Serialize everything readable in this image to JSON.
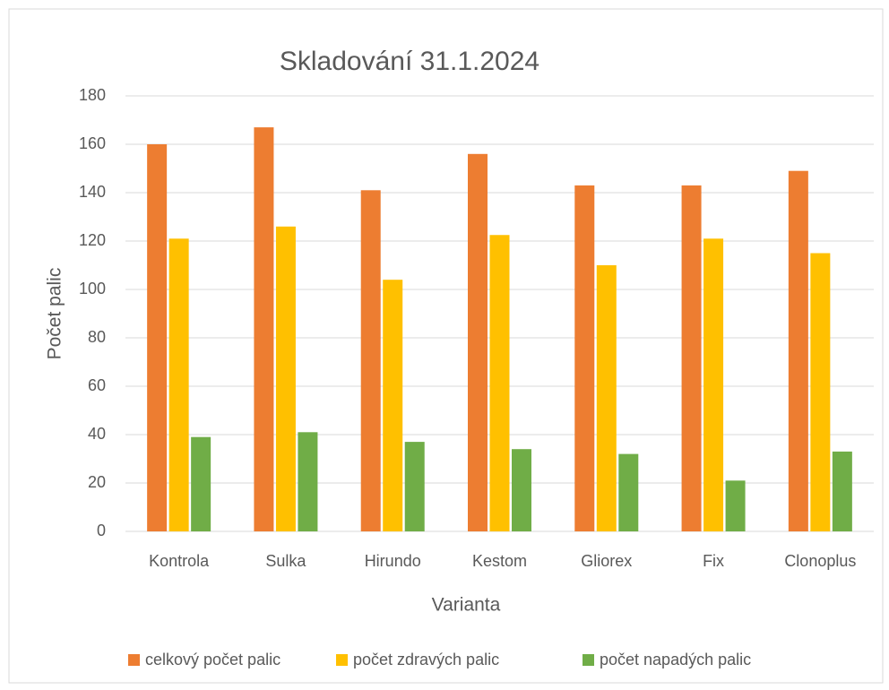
{
  "chart_data": {
    "type": "bar",
    "title": "Skladování 31.1.2024",
    "x_label": "Varianta",
    "y_label": "Počet palic",
    "categories": [
      "Kontrola",
      "Sulka",
      "Hirundo",
      "Kestom",
      "Gliorex",
      "Fix",
      "Clonoplus"
    ],
    "series": [
      {
        "name": "celkový počet palic",
        "color": "#ed7d31",
        "values": [
          160,
          167,
          141,
          156,
          143,
          143,
          149
        ]
      },
      {
        "name": "počet zdravých palic",
        "color": "#ffc000",
        "values": [
          121,
          126,
          104,
          122.5,
          110,
          121,
          115
        ]
      },
      {
        "name": "počet napadých palic",
        "color": "#70ad47",
        "values": [
          39,
          41,
          37,
          34,
          32,
          21,
          33
        ]
      }
    ],
    "ylim": [
      0,
      180
    ],
    "yticks": [
      0,
      20,
      40,
      60,
      80,
      100,
      120,
      140,
      160,
      180
    ],
    "grid": true,
    "legend": "bottom"
  }
}
